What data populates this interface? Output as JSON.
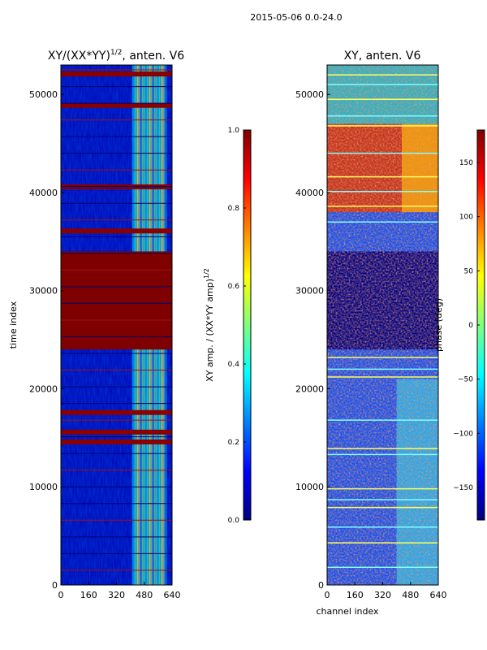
{
  "suptitle": "2015-05-06 0.0-24.0",
  "chart_data": [
    {
      "type": "heatmap",
      "title_prefix": "XY/(XX*YY)",
      "title_exp": "1/2",
      "title_suffix": ", anten. V6",
      "xlabel": "",
      "ylabel": "time index",
      "xlim": [
        0,
        640
      ],
      "ylim": [
        0,
        53000
      ],
      "xticks": [
        0,
        160,
        320,
        480,
        640
      ],
      "yticks": [
        0,
        10000,
        20000,
        30000,
        40000,
        50000
      ],
      "colorbar": {
        "label_prefix": "XY amp. / (XX*YY amp)",
        "label_exp": "1/2",
        "range": [
          0.0,
          1.0
        ],
        "ticks": [
          "0.0",
          "0.2",
          "0.4",
          "0.6",
          "0.8",
          "1.0"
        ],
        "tick_values": [
          0.0,
          0.2,
          0.4,
          0.6,
          0.8,
          1.0
        ]
      },
      "colormap": "jet",
      "features": {
        "saturated_block": [
          24000,
          34000
        ],
        "saturated_bands": [
          14500,
          15500,
          17500,
          36000,
          40500,
          48800,
          52000
        ],
        "high_channel_range": [
          410,
          600
        ]
      }
    },
    {
      "type": "heatmap",
      "title": "XY, anten. V6",
      "xlabel": "channel index",
      "ylabel": "",
      "xlim": [
        0,
        640
      ],
      "ylim": [
        0,
        53000
      ],
      "xticks": [
        0,
        160,
        320,
        480,
        640
      ],
      "yticks": [
        0,
        10000,
        20000,
        30000,
        40000,
        50000
      ],
      "colorbar": {
        "label": "phase (deg)",
        "range": [
          -180,
          180
        ],
        "ticks": [
          "−150",
          "−100",
          "−50",
          "0",
          "50",
          "100",
          "150"
        ],
        "tick_values": [
          -150,
          -100,
          -50,
          0,
          50,
          100,
          150
        ]
      },
      "colormap": "jet",
      "features": {
        "low_block": [
          24000,
          34000
        ],
        "noisy_region": [
          38000,
          47000
        ]
      }
    }
  ]
}
